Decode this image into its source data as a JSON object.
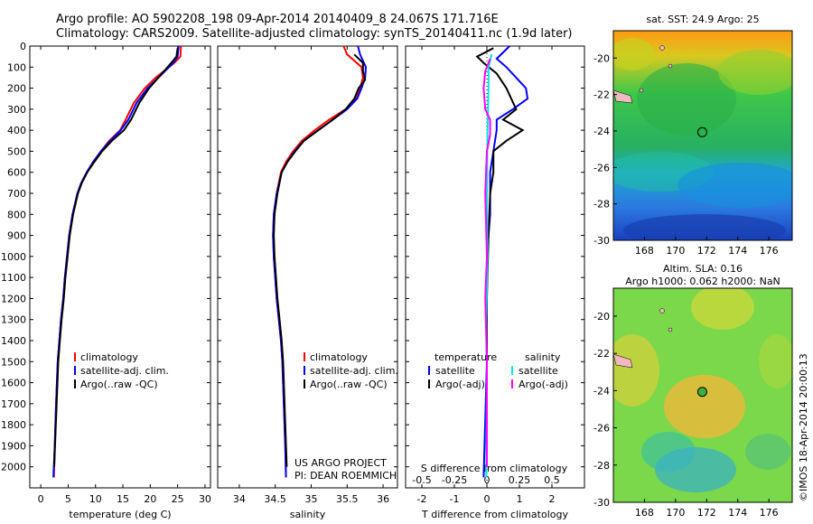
{
  "header": {
    "line1": "Argo profile: AO 5902208_198 09-Apr-2014 20140409_8 24.067S 171.716E",
    "line2": "Climatology: CARS2009. Satellite-adjusted climatology: synTS_20140411.nc (1.9d later)"
  },
  "colors": {
    "clim": "#ff0000",
    "sat": "#0000ff",
    "argo": "#000000",
    "sat_s": "#00e5e5",
    "argo_s": "#ff00ff"
  },
  "chart_data": [
    {
      "type": "line",
      "id": "temperature",
      "xlabel": "temperature (deg C)",
      "ylabel": "",
      "xlim": [
        -2,
        31
      ],
      "ylim": [
        2100,
        0
      ],
      "xticks": [
        0,
        5,
        10,
        15,
        20,
        25,
        30
      ],
      "yticks": [
        0,
        100,
        200,
        300,
        400,
        500,
        600,
        700,
        800,
        900,
        1000,
        1100,
        1200,
        1300,
        1400,
        1500,
        1600,
        1700,
        1800,
        1900,
        2000
      ],
      "legend": [
        "climatology",
        "satellite-adj. clim.",
        "Argo(..raw -QC)"
      ],
      "series": [
        {
          "name": "climatology",
          "color": "#ff0000",
          "points": [
            [
              25.6,
              0
            ],
            [
              25.5,
              50
            ],
            [
              24.4,
              80
            ],
            [
              21,
              150
            ],
            [
              19,
              200
            ],
            [
              17,
              270
            ],
            [
              15.5,
              350
            ],
            [
              14.5,
              400
            ],
            [
              12.5,
              450
            ],
            [
              11,
              500
            ],
            [
              9.6,
              550
            ],
            [
              8.4,
              600
            ],
            [
              7.4,
              650
            ],
            [
              6.7,
              700
            ],
            [
              5.8,
              800
            ],
            [
              5.2,
              900
            ],
            [
              4.8,
              1000
            ],
            [
              4.4,
              1100
            ],
            [
              4.1,
              1200
            ],
            [
              3.7,
              1300
            ],
            [
              3.4,
              1400
            ],
            [
              3.1,
              1500
            ],
            [
              2.8,
              1700
            ],
            [
              2.55,
              1900
            ],
            [
              2.4,
              2050
            ]
          ]
        },
        {
          "name": "satellite-adj. clim.",
          "color": "#0000ff",
          "points": [
            [
              25.2,
              0
            ],
            [
              25,
              50
            ],
            [
              24.2,
              80
            ],
            [
              21.5,
              150
            ],
            [
              19.5,
              200
            ],
            [
              17.5,
              270
            ],
            [
              16,
              350
            ],
            [
              14.6,
              400
            ],
            [
              12.7,
              450
            ],
            [
              11,
              500
            ],
            [
              9.6,
              550
            ],
            [
              8.4,
              600
            ],
            [
              7.4,
              650
            ],
            [
              6.7,
              700
            ],
            [
              5.8,
              800
            ],
            [
              5.2,
              900
            ],
            [
              4.8,
              1000
            ],
            [
              4.4,
              1100
            ],
            [
              4.1,
              1200
            ],
            [
              3.7,
              1300
            ],
            [
              3.4,
              1400
            ],
            [
              3.1,
              1500
            ],
            [
              2.8,
              1700
            ],
            [
              2.55,
              1900
            ],
            [
              2.3,
              2050
            ]
          ]
        },
        {
          "name": "Argo(..raw -QC)",
          "color": "#000000",
          "points": [
            [
              25,
              10
            ],
            [
              24.8,
              50
            ],
            [
              23.5,
              90
            ],
            [
              21.5,
              150
            ],
            [
              19.8,
              200
            ],
            [
              18,
              270
            ],
            [
              16.5,
              350
            ],
            [
              15.2,
              400
            ],
            [
              13,
              450
            ],
            [
              11.2,
              500
            ],
            [
              9.8,
              550
            ],
            [
              8.5,
              600
            ],
            [
              7.5,
              650
            ],
            [
              6.8,
              700
            ],
            [
              5.9,
              800
            ],
            [
              5.3,
              900
            ],
            [
              4.9,
              1000
            ],
            [
              4.5,
              1100
            ],
            [
              4.2,
              1200
            ],
            [
              3.8,
              1300
            ],
            [
              3.5,
              1400
            ],
            [
              3.2,
              1500
            ],
            [
              2.9,
              1700
            ],
            [
              2.6,
              1900
            ],
            [
              2.45,
              2000
            ]
          ]
        }
      ]
    },
    {
      "type": "line",
      "id": "salinity",
      "xlabel": "salinity",
      "xlim": [
        33.7,
        36.2
      ],
      "ylim": [
        2100,
        0
      ],
      "xticks": [
        34,
        34.5,
        35,
        35.5,
        36
      ],
      "legend": [
        "climatology",
        "satellite-adj. clim.",
        "Argo(..raw -QC)"
      ],
      "series": [
        {
          "name": "climatology",
          "color": "#ff0000",
          "points": [
            [
              35.45,
              0
            ],
            [
              35.5,
              40
            ],
            [
              35.7,
              100
            ],
            [
              35.72,
              150
            ],
            [
              35.68,
              200
            ],
            [
              35.62,
              250
            ],
            [
              35.48,
              300
            ],
            [
              35.25,
              350
            ],
            [
              35.05,
              400
            ],
            [
              34.87,
              450
            ],
            [
              34.75,
              500
            ],
            [
              34.65,
              550
            ],
            [
              34.58,
              600
            ],
            [
              34.52,
              700
            ],
            [
              34.48,
              800
            ],
            [
              34.47,
              900
            ],
            [
              34.48,
              1000
            ],
            [
              34.5,
              1100
            ],
            [
              34.52,
              1200
            ],
            [
              34.55,
              1300
            ],
            [
              34.58,
              1400
            ],
            [
              34.6,
              1500
            ],
            [
              34.62,
              1700
            ],
            [
              34.64,
              1900
            ],
            [
              34.65,
              2050
            ]
          ]
        },
        {
          "name": "satellite-adj. clim.",
          "color": "#0000ff",
          "points": [
            [
              35.65,
              0
            ],
            [
              35.68,
              40
            ],
            [
              35.76,
              100
            ],
            [
              35.75,
              150
            ],
            [
              35.7,
              200
            ],
            [
              35.64,
              250
            ],
            [
              35.5,
              300
            ],
            [
              35.3,
              350
            ],
            [
              35.1,
              400
            ],
            [
              34.9,
              450
            ],
            [
              34.77,
              500
            ],
            [
              34.67,
              550
            ],
            [
              34.59,
              600
            ],
            [
              34.52,
              700
            ],
            [
              34.48,
              800
            ],
            [
              34.47,
              900
            ],
            [
              34.48,
              1000
            ],
            [
              34.5,
              1100
            ],
            [
              34.52,
              1200
            ],
            [
              34.55,
              1300
            ],
            [
              34.58,
              1400
            ],
            [
              34.6,
              1500
            ],
            [
              34.62,
              1700
            ],
            [
              34.64,
              1900
            ],
            [
              34.65,
              2050
            ]
          ]
        },
        {
          "name": "Argo(..raw -QC)",
          "color": "#000000",
          "points": [
            [
              35.6,
              40
            ],
            [
              35.72,
              80
            ],
            [
              35.72,
              120
            ],
            [
              35.75,
              160
            ],
            [
              35.66,
              200
            ],
            [
              35.6,
              250
            ],
            [
              35.48,
              300
            ],
            [
              35.3,
              350
            ],
            [
              35.1,
              400
            ],
            [
              34.9,
              450
            ],
            [
              34.78,
              500
            ],
            [
              34.67,
              550
            ],
            [
              34.59,
              600
            ],
            [
              34.53,
              700
            ],
            [
              34.49,
              800
            ],
            [
              34.48,
              900
            ],
            [
              34.49,
              1000
            ],
            [
              34.51,
              1100
            ],
            [
              34.53,
              1200
            ],
            [
              34.56,
              1300
            ],
            [
              34.59,
              1400
            ],
            [
              34.61,
              1500
            ],
            [
              34.63,
              1700
            ],
            [
              34.65,
              1900
            ],
            [
              34.66,
              2000
            ]
          ]
        }
      ]
    },
    {
      "type": "line",
      "id": "difference",
      "xlabel": "T difference from climatology",
      "xlabel_top": "S difference from climatology",
      "xlim": [
        -2.5,
        3
      ],
      "ylim": [
        2100,
        0
      ],
      "xticks": [
        -2,
        -1,
        0,
        1,
        2
      ],
      "top_ticks": [
        "-0.5",
        "-0.25",
        "0",
        "0.25",
        "0.5"
      ],
      "legend_titles": [
        "temperature",
        "salinity"
      ],
      "legend": [
        "satellite",
        "Argo(-adj)",
        "satellite",
        "Argo(-adj)"
      ],
      "series": [
        {
          "name": "temperature satellite",
          "color": "#0000ff",
          "points": [
            [
              0.7,
              0
            ],
            [
              0.5,
              30
            ],
            [
              0.3,
              60
            ],
            [
              0.6,
              100
            ],
            [
              0.9,
              150
            ],
            [
              1.2,
              200
            ],
            [
              1.25,
              250
            ],
            [
              0.8,
              300
            ],
            [
              0.3,
              350
            ],
            [
              0.3,
              400
            ],
            [
              0.2,
              500
            ],
            [
              0.1,
              600
            ],
            [
              0.1,
              800
            ],
            [
              0,
              1000
            ],
            [
              0,
              1500
            ],
            [
              -0.1,
              2050
            ]
          ]
        },
        {
          "name": "temperature Argo(-adj)",
          "color": "#000000",
          "points": [
            [
              0.2,
              10
            ],
            [
              -0.3,
              50
            ],
            [
              -0.1,
              80
            ],
            [
              0.3,
              130
            ],
            [
              0.6,
              200
            ],
            [
              0.9,
              300
            ],
            [
              0.5,
              350
            ],
            [
              1.1,
              400
            ],
            [
              0.6,
              450
            ],
            [
              0.2,
              500
            ],
            [
              0.2,
              600
            ],
            [
              0.1,
              700
            ],
            [
              0.05,
              900
            ],
            [
              0,
              1200
            ],
            [
              0,
              2000
            ]
          ]
        },
        {
          "name": "salinity satellite",
          "color": "#00e5e5",
          "points": [
            [
              0.15,
              40
            ],
            [
              0.05,
              100
            ],
            [
              0.05,
              200
            ],
            [
              0.02,
              400
            ],
            [
              0,
              700
            ],
            [
              0.02,
              1000
            ],
            [
              -0.02,
              1300
            ],
            [
              0,
              1600
            ],
            [
              -0.02,
              2050
            ]
          ]
        },
        {
          "name": "salinity Argo(-adj)",
          "color": "#ff00ff",
          "points": [
            [
              0.1,
              60
            ],
            [
              -0.05,
              120
            ],
            [
              -0.1,
              200
            ],
            [
              -0.05,
              300
            ],
            [
              0.1,
              350
            ],
            [
              0.1,
              420
            ],
            [
              0,
              500
            ],
            [
              -0.05,
              700
            ],
            [
              0,
              1000
            ],
            [
              -0.05,
              1200
            ],
            [
              0,
              1500
            ],
            [
              0,
              2000
            ]
          ]
        }
      ]
    },
    {
      "type": "heatmap",
      "id": "sst-map",
      "title": "sat. SST: 24.9 Argo: 25",
      "xlim": [
        166,
        177.5
      ],
      "ylim": [
        -30,
        -18.5
      ],
      "xticks": [
        168,
        170,
        172,
        174,
        176
      ],
      "yticks": [
        -20,
        -22,
        -24,
        -26,
        -28,
        -30
      ],
      "marker": {
        "lon": 171.716,
        "lat": -24.067
      }
    },
    {
      "type": "heatmap",
      "id": "sla-map",
      "title": "Altim. SLA: 0.16",
      "subtitle": "Argo h1000: 0.062 h2000: NaN",
      "xlim": [
        166,
        177.5
      ],
      "ylim": [
        -30,
        -18.5
      ],
      "xticks": [
        168,
        170,
        172,
        174,
        176
      ],
      "yticks": [
        -20,
        -22,
        -24,
        -26,
        -28,
        -30
      ],
      "marker": {
        "lon": 171.716,
        "lat": -24.067
      }
    }
  ],
  "annotations": {
    "project_line1": "US ARGO PROJECT",
    "project_line2": "PI: DEAN ROEMMICH",
    "imos": "©IMOS 18-Apr-2014 20:00:13"
  }
}
